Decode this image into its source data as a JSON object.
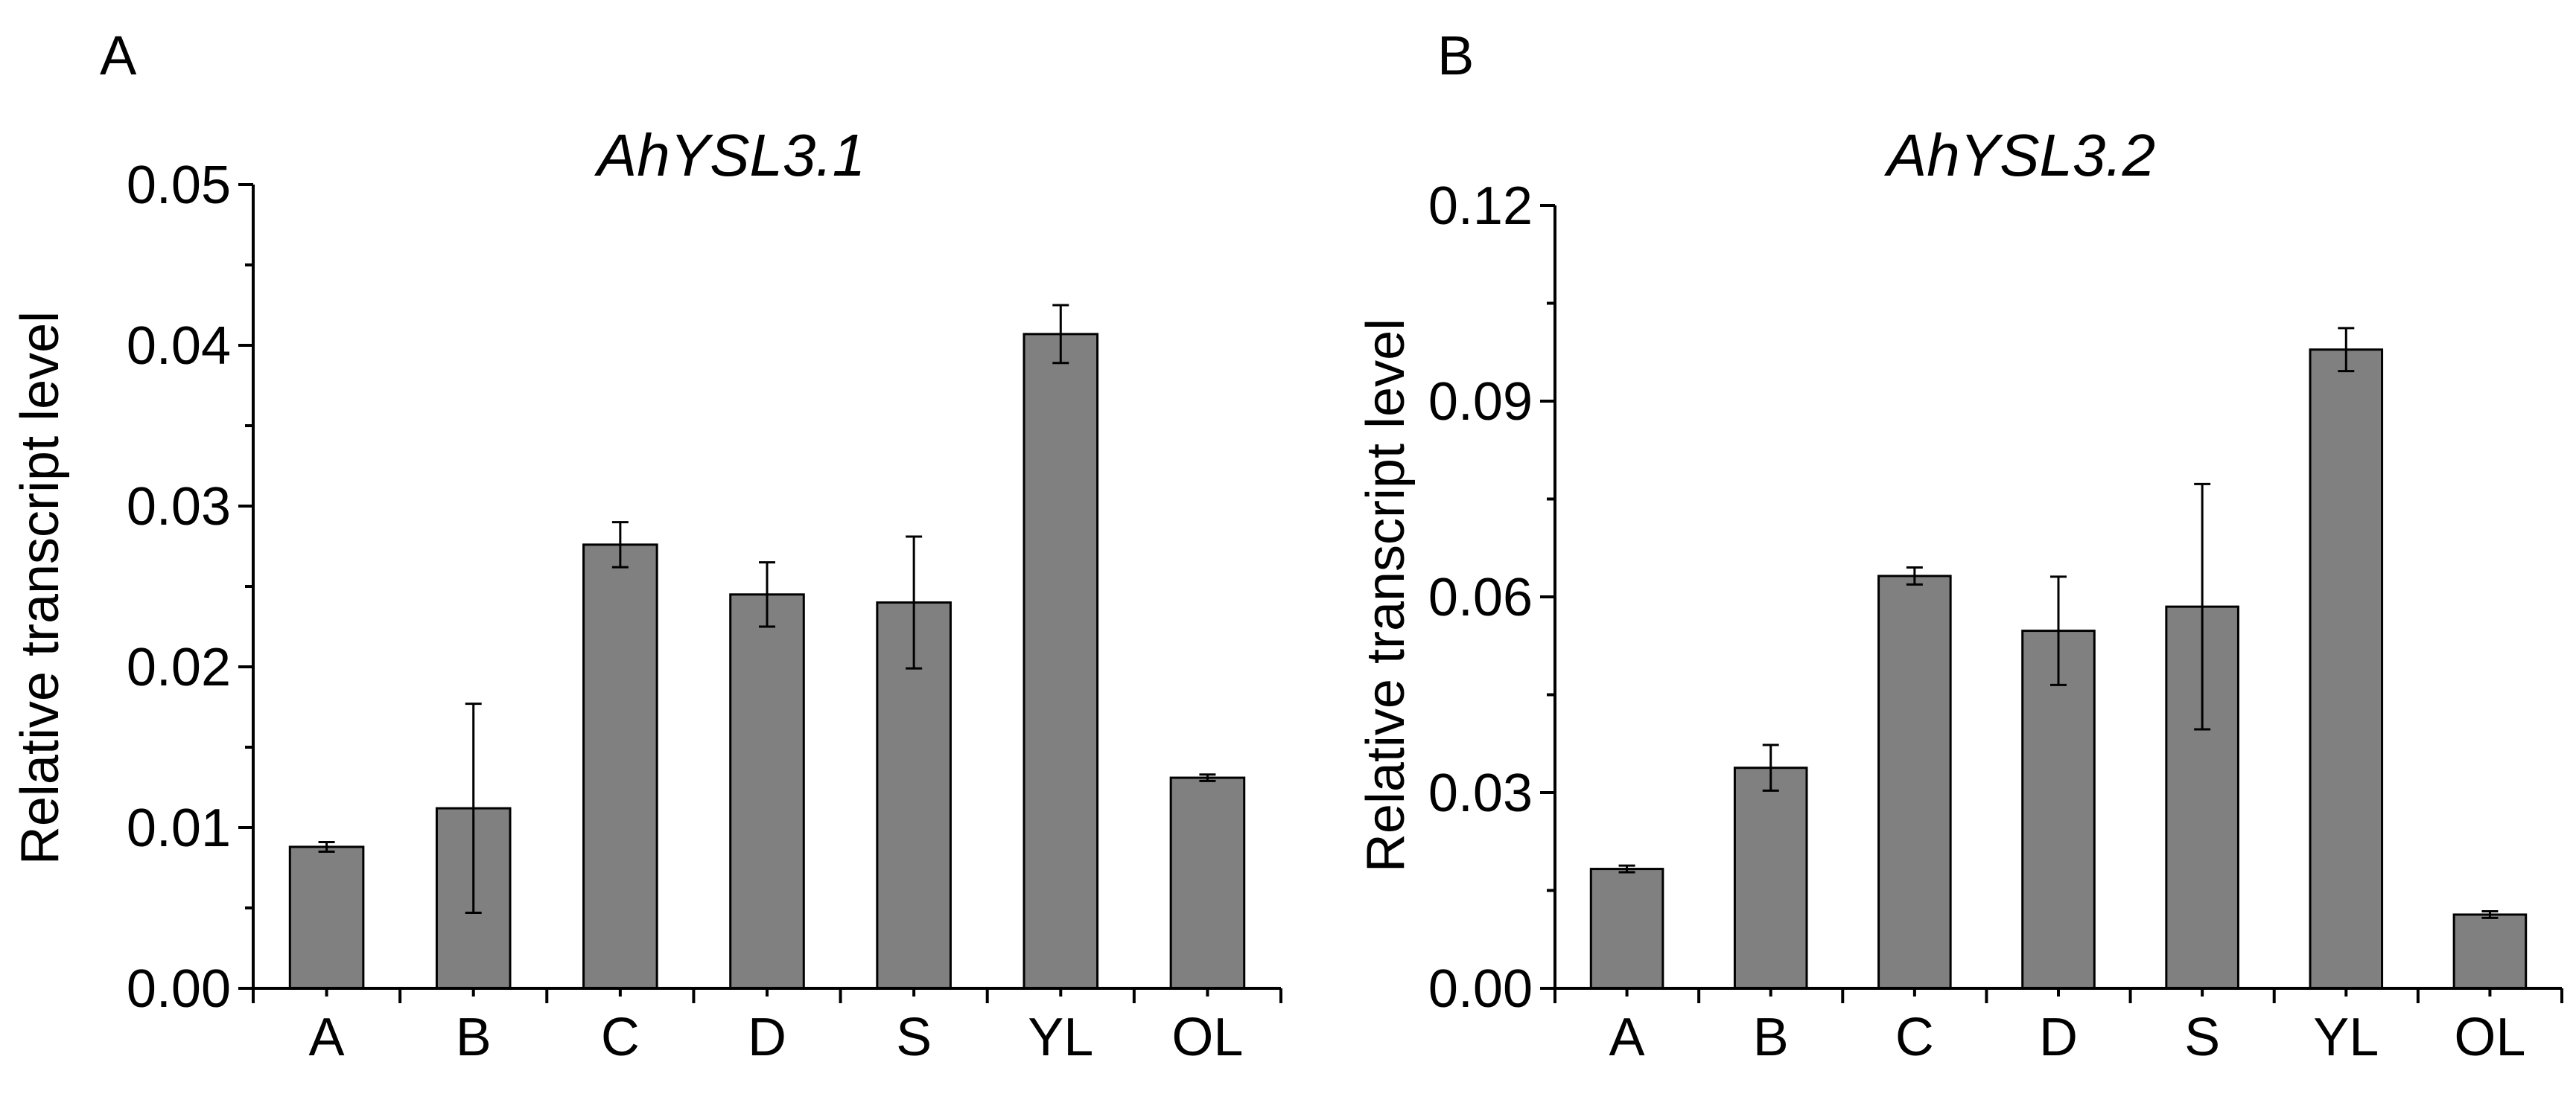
{
  "chart_data": [
    {
      "type": "bar",
      "panel_label": "A",
      "title": "AhYSL3.1",
      "xlabel": "",
      "ylabel": "Relative transcript level",
      "ylim": [
        0,
        0.05
      ],
      "yticks": [
        "0.00",
        "0.01",
        "0.02",
        "0.03",
        "0.04",
        "0.05"
      ],
      "yticks_values": [
        0,
        0.01,
        0.02,
        0.03,
        0.04,
        0.05
      ],
      "categories": [
        "A",
        "B",
        "C",
        "D",
        "S",
        "YL",
        "OL"
      ],
      "values": [
        0.0088,
        0.0112,
        0.0276,
        0.0245,
        0.024,
        0.0407,
        0.0131
      ],
      "errors": [
        0.0003,
        0.0065,
        0.0014,
        0.002,
        0.0041,
        0.0018,
        0.0002
      ],
      "bar_color": "#808080"
    },
    {
      "type": "bar",
      "panel_label": "B",
      "title": "AhYSL3.2",
      "xlabel": "",
      "ylabel": "Relative transcript level",
      "ylim": [
        0,
        0.12
      ],
      "yticks": [
        "0.00",
        "0.03",
        "0.06",
        "0.09",
        "0.12"
      ],
      "yticks_values": [
        0,
        0.03,
        0.06,
        0.09,
        0.12
      ],
      "categories": [
        "A",
        "B",
        "C",
        "D",
        "S",
        "YL",
        "OL"
      ],
      "values": [
        0.0183,
        0.0338,
        0.0632,
        0.0548,
        0.0585,
        0.0979,
        0.0113
      ],
      "errors": [
        0.0005,
        0.0035,
        0.0013,
        0.0083,
        0.0188,
        0.0033,
        0.0005
      ],
      "bar_color": "#808080"
    }
  ]
}
